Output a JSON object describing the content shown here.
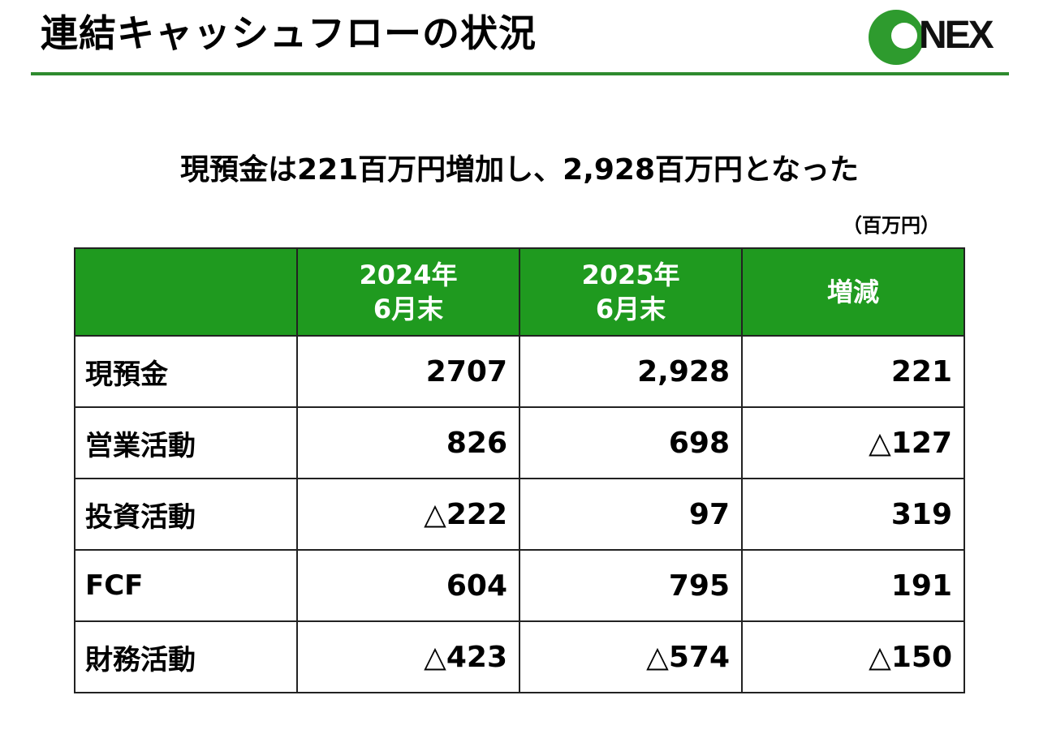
{
  "header": {
    "title": "連結キャッシュフローの状況",
    "logo_text": "NEX",
    "brand_color": "#1f9a1f"
  },
  "summary": {
    "headline": "現預金は221百万円増加し、2,928百万円となった",
    "unit": "（百万円）"
  },
  "table": {
    "columns": [
      {
        "line1": "",
        "line2": ""
      },
      {
        "line1": "2024年",
        "line2": "6月末"
      },
      {
        "line1": "2025年",
        "line2": "6月末"
      },
      {
        "line1": "増減",
        "line2": ""
      }
    ],
    "rows": [
      {
        "label": "現預金",
        "values": [
          "2707",
          "2,928",
          "221"
        ]
      },
      {
        "label": "営業活動",
        "values": [
          "826",
          "698",
          "△127"
        ]
      },
      {
        "label": "投資活動",
        "values": [
          "△222",
          "97",
          "319"
        ]
      },
      {
        "label": "FCF",
        "values": [
          "604",
          "795",
          "191"
        ]
      },
      {
        "label": "財務活動",
        "values": [
          "△423",
          "△574",
          "△150"
        ]
      }
    ]
  }
}
